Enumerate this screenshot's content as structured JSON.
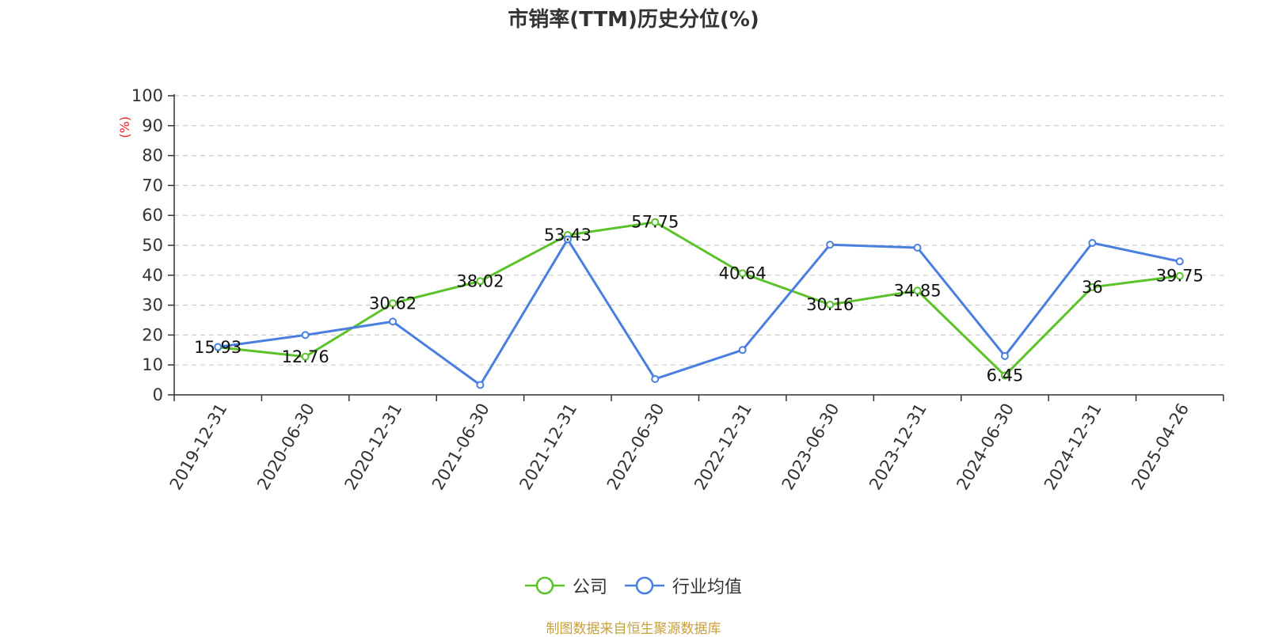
{
  "chart_data": {
    "type": "line",
    "title": "市销率(TTM)历史分位(%)",
    "ylabel": "(%)",
    "xlabel": "",
    "ylim": [
      0,
      100
    ],
    "yticks": [
      0,
      10,
      20,
      30,
      40,
      50,
      60,
      70,
      80,
      90,
      100
    ],
    "grid": true,
    "legend_position": "bottom",
    "categories": [
      "2019-12-31",
      "2020-06-30",
      "2020-12-31",
      "2021-06-30",
      "2021-12-31",
      "2022-06-30",
      "2022-12-31",
      "2023-06-30",
      "2023-12-31",
      "2024-06-30",
      "2024-12-31",
      "2025-04-26"
    ],
    "series": [
      {
        "name": "公司",
        "color": "#5cc22a",
        "labeled": true,
        "values": [
          15.93,
          12.76,
          30.62,
          38.02,
          53.43,
          57.75,
          40.64,
          30.16,
          34.85,
          6.45,
          36,
          39.75
        ]
      },
      {
        "name": "行业均值",
        "color": "#4a7fe0",
        "labeled": false,
        "values": [
          16,
          20,
          24.5,
          3.3,
          52,
          5.3,
          15,
          50.2,
          49.2,
          13,
          50.8,
          44.6
        ]
      }
    ],
    "source": "制图数据来自恒生聚源数据库"
  }
}
